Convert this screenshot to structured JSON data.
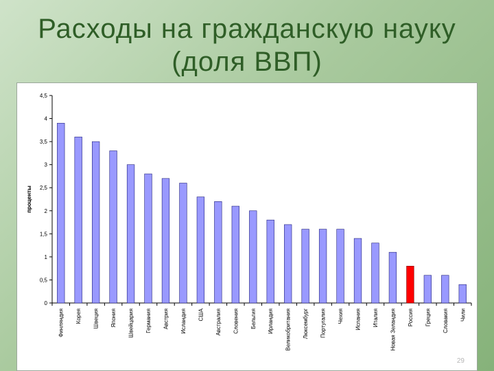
{
  "title": {
    "line1": "Расходы на гражданскую науку",
    "line2": "(доля ВВП)"
  },
  "page_number": "29",
  "colors": {
    "bar_fill": "#9999ff",
    "bar_stroke": "#1f1f7a",
    "highlight_fill": "#ff0000",
    "highlight_stroke": "#7a0000",
    "title_color": "#2f5e27"
  },
  "chart_data": {
    "type": "bar",
    "title": "",
    "xlabel": "",
    "ylabel": "проценты",
    "ylim": [
      0,
      4.5
    ],
    "yticks": [
      "0",
      "0,5",
      "1",
      "1,5",
      "2",
      "2,5",
      "3",
      "3,5",
      "4",
      "4,5"
    ],
    "grid": false,
    "legend": "none",
    "highlight_category": "Россия",
    "categories": [
      "Финляндия",
      "Корея",
      "Швеция",
      "Япония",
      "Швейцария",
      "Германия",
      "Австрия",
      "Исландия",
      "США",
      "Австралия",
      "Словения",
      "Бельгия",
      "Ирландия",
      "Великобритания",
      "Люксембург",
      "Португалия",
      "Чехия",
      "Испания",
      "Италия",
      "Новая Зеландия",
      "Россия",
      "Греция",
      "Словакия",
      "Чили"
    ],
    "values": [
      3.9,
      3.6,
      3.5,
      3.3,
      3.0,
      2.8,
      2.7,
      2.6,
      2.3,
      2.2,
      2.1,
      2.0,
      1.8,
      1.7,
      1.6,
      1.6,
      1.6,
      1.4,
      1.3,
      1.1,
      0.8,
      0.6,
      0.6,
      0.4
    ]
  }
}
